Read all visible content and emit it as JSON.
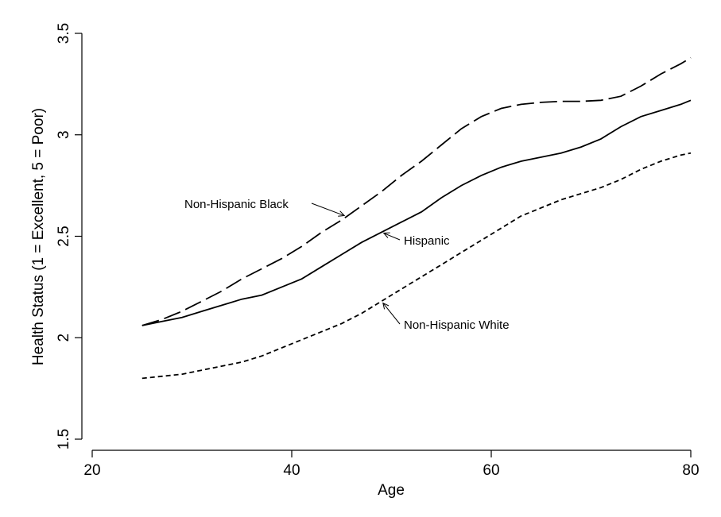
{
  "chart_data": {
    "type": "line",
    "title": "",
    "xlabel": "Age",
    "ylabel": "Health Status (1 = Excellent, 5 = Poor)",
    "xlim": [
      20,
      80
    ],
    "ylim": [
      1.5,
      3.5
    ],
    "x_ticks": [
      "20",
      "40",
      "60",
      "80"
    ],
    "y_ticks": [
      "1.5",
      "2",
      "2.5",
      "3",
      "3.5"
    ],
    "grid": false,
    "legend": "none",
    "series": [
      {
        "name": "Non-Hispanic Black",
        "style": "long-dash",
        "x": [
          25,
          27,
          29,
          31,
          33,
          35,
          37,
          39,
          41,
          43,
          45,
          47,
          49,
          51,
          53,
          55,
          57,
          59,
          61,
          63,
          65,
          67,
          69,
          71,
          73,
          75,
          77,
          79,
          80
        ],
        "y": [
          2.06,
          2.09,
          2.13,
          2.18,
          2.23,
          2.29,
          2.34,
          2.39,
          2.45,
          2.52,
          2.58,
          2.65,
          2.72,
          2.8,
          2.87,
          2.95,
          3.03,
          3.09,
          3.13,
          3.15,
          3.16,
          3.165,
          3.165,
          3.17,
          3.19,
          3.24,
          3.3,
          3.35,
          3.38
        ]
      },
      {
        "name": "Hispanic",
        "style": "solid",
        "x": [
          25,
          27,
          29,
          31,
          33,
          35,
          37,
          39,
          41,
          43,
          45,
          47,
          49,
          51,
          53,
          55,
          57,
          59,
          61,
          63,
          65,
          67,
          69,
          71,
          73,
          75,
          77,
          79,
          80
        ],
        "y": [
          2.06,
          2.08,
          2.1,
          2.13,
          2.16,
          2.19,
          2.21,
          2.25,
          2.29,
          2.35,
          2.41,
          2.47,
          2.52,
          2.57,
          2.62,
          2.69,
          2.75,
          2.8,
          2.84,
          2.87,
          2.89,
          2.91,
          2.94,
          2.98,
          3.04,
          3.09,
          3.12,
          3.15,
          3.17
        ]
      },
      {
        "name": "Non-Hispanic White",
        "style": "short-dash",
        "x": [
          25,
          27,
          29,
          31,
          33,
          35,
          37,
          39,
          41,
          43,
          45,
          47,
          49,
          51,
          53,
          55,
          57,
          59,
          61,
          63,
          65,
          67,
          69,
          71,
          73,
          75,
          77,
          79,
          80
        ],
        "y": [
          1.8,
          1.81,
          1.82,
          1.84,
          1.86,
          1.88,
          1.91,
          1.95,
          1.99,
          2.03,
          2.07,
          2.12,
          2.18,
          2.24,
          2.3,
          2.36,
          2.42,
          2.48,
          2.54,
          2.6,
          2.64,
          2.68,
          2.71,
          2.74,
          2.78,
          2.83,
          2.87,
          2.9,
          2.91
        ]
      }
    ],
    "annotations": [
      {
        "text": "Non-Hispanic Black",
        "series": 0,
        "at_x": 45.5
      },
      {
        "text": "Hispanic",
        "series": 1,
        "at_x": 49
      },
      {
        "text": "Non-Hispanic White",
        "series": 2,
        "at_x": 49
      }
    ]
  }
}
